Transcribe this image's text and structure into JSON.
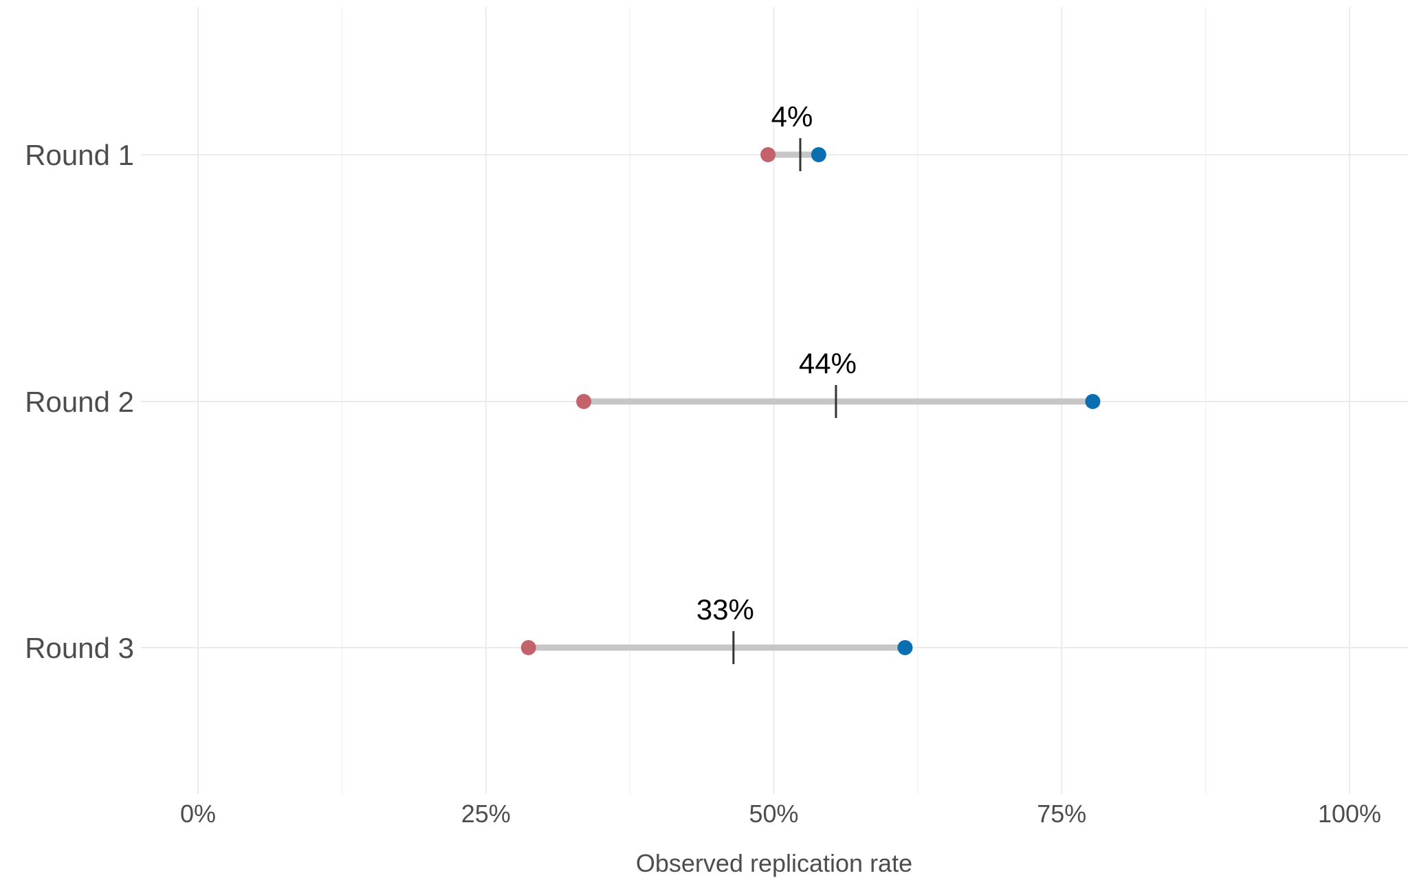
{
  "chart_data": {
    "type": "dumbbell",
    "title": "",
    "xlabel": "Observed replication rate",
    "ylabel": "",
    "xlim": [
      -0.05,
      1.05
    ],
    "x_ticks": [
      0,
      0.25,
      0.5,
      0.75,
      1.0
    ],
    "x_tick_labels": [
      "0%",
      "25%",
      "50%",
      "75%",
      "100%"
    ],
    "grid": true,
    "categories": [
      "Round 1",
      "Round 2",
      "Round 3"
    ],
    "series": [
      {
        "values": [
          0.495,
          0.335,
          0.287
        ],
        "color": "#c4626b"
      },
      {
        "values": [
          0.539,
          0.777,
          0.614
        ],
        "color": "#0a6fb0"
      }
    ],
    "midpoints": [
      0.523,
      0.554,
      0.465
    ],
    "difference_labels": [
      "4%",
      "44%",
      "33%"
    ],
    "segment_color": "#c6c6c6",
    "midpoint_color": "#333333"
  }
}
